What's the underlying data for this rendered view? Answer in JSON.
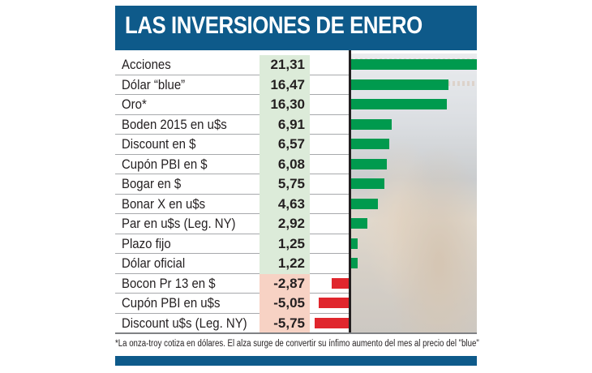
{
  "header": {
    "title": "LAS INVERSIONES DE ENERO"
  },
  "footnote": "*La onza-troy cotiza en dólares. El alza surge de convertir su ínfimo aumento del mes al precio del \"blue\"",
  "colors": {
    "header_bg": "#0e5a8a",
    "positive_bar": "#009a4e",
    "negative_bar": "#e0262d",
    "positive_cell": "#dcebd9",
    "negative_cell": "#f7d2c4"
  },
  "rows": [
    {
      "label": "Acciones",
      "value": "21,31"
    },
    {
      "label": "Dólar “blue”",
      "value": "16,47"
    },
    {
      "label": "Oro*",
      "value": "16,30"
    },
    {
      "label": "Boden 2015 en u$s",
      "value": "6,91"
    },
    {
      "label": "Discount en $",
      "value": "6,57"
    },
    {
      "label": "Cupón PBI en $",
      "value": "6,08"
    },
    {
      "label": "Bogar en $",
      "value": "5,75"
    },
    {
      "label": "Bonar X en u$s",
      "value": "4,63"
    },
    {
      "label": "Par en u$s (Leg. NY)",
      "value": "2,92"
    },
    {
      "label": "Plazo fijo",
      "value": "1,25"
    },
    {
      "label": "Dólar oficial",
      "value": "1,22"
    },
    {
      "label": "Bocon Pr 13 en $",
      "value": "-2,87"
    },
    {
      "label": "Cupón PBI en u$s",
      "value": "-5,05"
    },
    {
      "label": "Discount u$s (Leg. NY)",
      "value": "-5,75"
    }
  ],
  "chart_data": {
    "type": "bar",
    "orientation": "horizontal",
    "title": "LAS INVERSIONES DE ENERO",
    "xlabel": "",
    "ylabel": "",
    "categories": [
      "Acciones",
      "Dólar “blue”",
      "Oro*",
      "Boden 2015 en u$s",
      "Discount en $",
      "Cupón PBI en $",
      "Bogar en $",
      "Bonar X en u$s",
      "Par en u$s (Leg. NY)",
      "Plazo fijo",
      "Dólar oficial",
      "Bocon Pr 13 en $",
      "Cupón PBI en u$s",
      "Discount u$s (Leg. NY)"
    ],
    "values": [
      21.31,
      16.47,
      16.3,
      6.91,
      6.57,
      6.08,
      5.75,
      4.63,
      2.92,
      1.25,
      1.22,
      -2.87,
      -5.05,
      -5.75
    ],
    "grid": false,
    "legend": null,
    "annotations": [
      "*La onza-troy cotiza en dólares. El alza surge de convertir su ínfimo aumento del mes al precio del \"blue\""
    ]
  }
}
